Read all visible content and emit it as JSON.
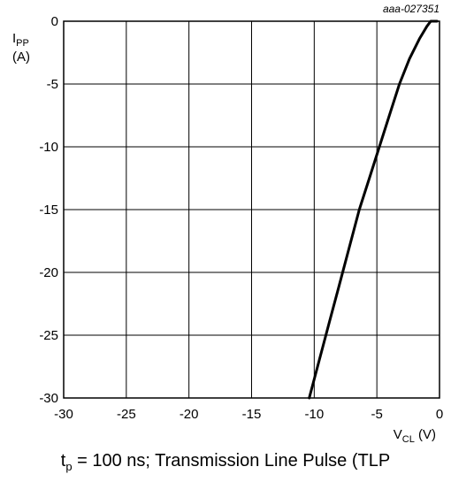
{
  "figure_code": "aaa-027351",
  "caption": {
    "t": "t",
    "t_sub": "p",
    "rest": " = 100 ns; Transmission Line Pulse (TLP"
  },
  "chart_data": {
    "type": "line",
    "title": "",
    "xlabel": {
      "main": "V",
      "sub": "CL",
      "unit": " (V)"
    },
    "ylabel": {
      "main": "I",
      "sub": "PP",
      "unit": "(A)"
    },
    "xlim": [
      -30,
      0
    ],
    "ylim": [
      -30,
      0
    ],
    "x_ticks": [
      -30,
      -25,
      -20,
      -15,
      -10,
      -5,
      0
    ],
    "y_ticks": [
      0,
      -5,
      -10,
      -15,
      -20,
      -25,
      -30
    ],
    "grid": true,
    "series": [
      {
        "color": "#000000",
        "points": [
          [
            -10.4,
            -30
          ],
          [
            -9.6,
            -27
          ],
          [
            -8.8,
            -24
          ],
          [
            -8.0,
            -21
          ],
          [
            -7.2,
            -18
          ],
          [
            -6.4,
            -15
          ],
          [
            -5.6,
            -12.5
          ],
          [
            -4.8,
            -10
          ],
          [
            -4.0,
            -7.5
          ],
          [
            -3.2,
            -5
          ],
          [
            -2.4,
            -3
          ],
          [
            -1.6,
            -1.4
          ],
          [
            -1.0,
            -0.4
          ],
          [
            -0.7,
            0
          ],
          [
            -0.2,
            0
          ]
        ]
      }
    ]
  }
}
